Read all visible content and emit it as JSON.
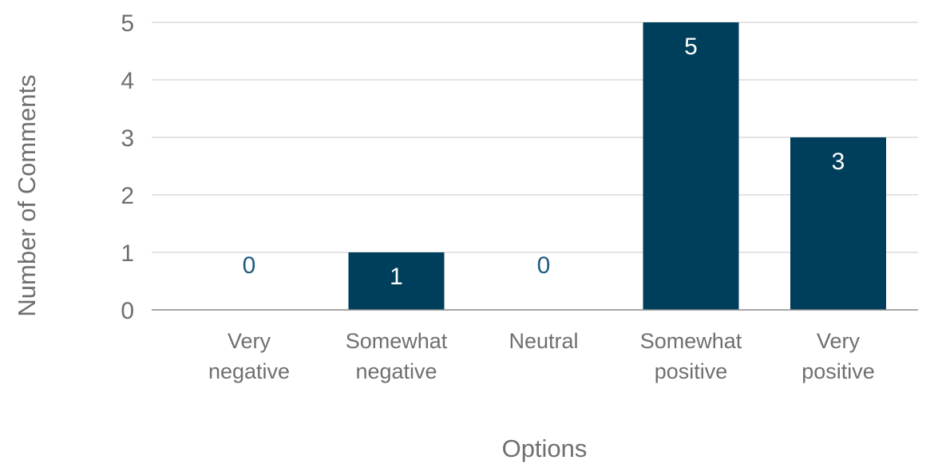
{
  "chart_data": {
    "type": "bar",
    "categories": [
      [
        "Very",
        "negative"
      ],
      [
        "Somewhat",
        "negative"
      ],
      [
        "Neutral"
      ],
      [
        "Somewhat",
        "positive"
      ],
      [
        "Very",
        "positive"
      ]
    ],
    "values": [
      0,
      1,
      0,
      5,
      3
    ],
    "data_labels": [
      "0",
      "1",
      "0",
      "5",
      "3"
    ],
    "xlabel": "Options",
    "ylabel": "Number of Comments",
    "ylim": [
      0,
      5
    ],
    "yticks": [
      "0",
      "1",
      "2",
      "3",
      "4",
      "5"
    ],
    "grid": true,
    "legend": "none",
    "colors": {
      "bar": "#003f5c",
      "label_on_bar": "#ffffff",
      "label_above_bar": "#1f5b80"
    }
  }
}
